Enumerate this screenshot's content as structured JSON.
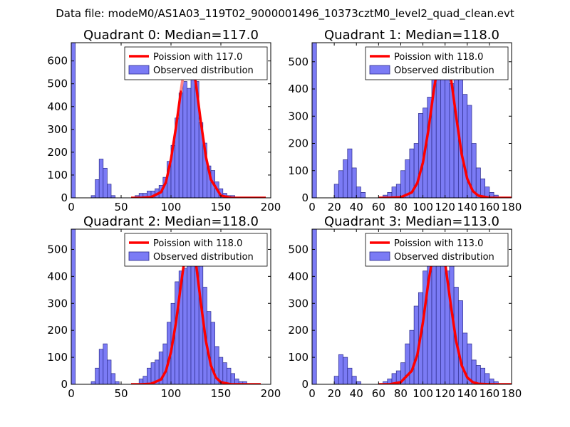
{
  "suptitle": "Data file: modeM0/AS1A03_119T02_9000001496_10373cztM0_level2_quad_clean.evt",
  "colors": {
    "hist_fill": "#7b7bf5",
    "hist_edge": "#2b2b8a",
    "poisson": "#ff0000",
    "poisson_peak": "#ff9a9a",
    "frame": "#000000"
  },
  "legend": {
    "observed_label": "Observed distribution"
  },
  "chart_data": [
    {
      "type": "bar",
      "title": "Quadrant 0: Median=117.0",
      "poisson_label": "Poission with 117.0",
      "median": 117.0,
      "xlim": [
        0,
        200
      ],
      "ylim": [
        0,
        680
      ],
      "xticks": [
        0,
        50,
        100,
        150,
        200
      ],
      "yticks": [
        0,
        100,
        200,
        300,
        400,
        500,
        600
      ],
      "xticklabels": [
        "0",
        "50",
        "100",
        "150",
        "200"
      ],
      "yticklabels": [
        "0",
        "100",
        "200",
        "300",
        "400",
        "500",
        "600"
      ],
      "bins": [
        [
          0,
          4,
          680
        ],
        [
          20,
          4,
          10
        ],
        [
          24,
          4,
          80
        ],
        [
          28,
          4,
          170
        ],
        [
          32,
          4,
          130
        ],
        [
          36,
          4,
          60
        ],
        [
          40,
          4,
          10
        ],
        [
          64,
          4,
          10
        ],
        [
          68,
          4,
          20
        ],
        [
          72,
          4,
          20
        ],
        [
          76,
          4,
          30
        ],
        [
          80,
          4,
          30
        ],
        [
          84,
          4,
          40
        ],
        [
          88,
          4,
          55
        ],
        [
          92,
          4,
          90
        ],
        [
          96,
          4,
          160
        ],
        [
          100,
          4,
          230
        ],
        [
          104,
          4,
          350
        ],
        [
          108,
          4,
          460
        ],
        [
          112,
          4,
          510
        ],
        [
          116,
          4,
          480
        ],
        [
          120,
          4,
          530
        ],
        [
          124,
          4,
          510
        ],
        [
          128,
          4,
          330
        ],
        [
          132,
          4,
          240
        ],
        [
          136,
          4,
          140
        ],
        [
          140,
          4,
          120
        ],
        [
          144,
          4,
          70
        ],
        [
          148,
          4,
          40
        ],
        [
          152,
          4,
          20
        ],
        [
          156,
          4,
          10
        ],
        [
          160,
          4,
          10
        ]
      ],
      "poisson_x": [
        60,
        70,
        80,
        90,
        95,
        100,
        105,
        110,
        114,
        117,
        120,
        125,
        130,
        135,
        140,
        150,
        160,
        170,
        180,
        190,
        195
      ],
      "poisson_y": [
        0,
        0,
        3,
        25,
        70,
        170,
        310,
        470,
        590,
        650,
        630,
        500,
        330,
        180,
        80,
        10,
        0,
        0,
        0,
        0,
        0
      ]
    },
    {
      "type": "bar",
      "title": "Quadrant 1: Median=118.0",
      "poisson_label": "Poission with 118.0",
      "median": 118.0,
      "xlim": [
        0,
        180
      ],
      "ylim": [
        0,
        570
      ],
      "xticks": [
        0,
        20,
        40,
        60,
        80,
        100,
        120,
        140,
        160,
        180
      ],
      "yticks": [
        0,
        100,
        200,
        300,
        400,
        500
      ],
      "xticklabels": [
        "0",
        "20",
        "40",
        "60",
        "80",
        "100",
        "120",
        "140",
        "160",
        "180"
      ],
      "yticklabels": [
        "0",
        "100",
        "200",
        "300",
        "400",
        "500"
      ],
      "bins": [
        [
          0,
          4,
          570
        ],
        [
          20,
          4,
          50
        ],
        [
          24,
          4,
          100
        ],
        [
          28,
          4,
          140
        ],
        [
          32,
          4,
          180
        ],
        [
          36,
          4,
          110
        ],
        [
          40,
          4,
          40
        ],
        [
          44,
          4,
          20
        ],
        [
          64,
          4,
          10
        ],
        [
          68,
          4,
          20
        ],
        [
          72,
          4,
          40
        ],
        [
          76,
          4,
          50
        ],
        [
          80,
          4,
          100
        ],
        [
          84,
          4,
          140
        ],
        [
          88,
          4,
          180
        ],
        [
          92,
          4,
          200
        ],
        [
          96,
          4,
          310
        ],
        [
          100,
          4,
          330
        ],
        [
          104,
          4,
          370
        ],
        [
          108,
          4,
          480
        ],
        [
          112,
          4,
          510
        ],
        [
          116,
          4,
          550
        ],
        [
          120,
          4,
          500
        ],
        [
          124,
          4,
          420
        ],
        [
          128,
          4,
          550
        ],
        [
          132,
          4,
          480
        ],
        [
          136,
          4,
          380
        ],
        [
          140,
          4,
          340
        ],
        [
          144,
          4,
          200
        ],
        [
          148,
          4,
          110
        ],
        [
          152,
          4,
          70
        ],
        [
          156,
          4,
          40
        ],
        [
          160,
          4,
          20
        ],
        [
          164,
          4,
          10
        ]
      ],
      "poisson_x": [
        60,
        70,
        80,
        90,
        95,
        100,
        105,
        110,
        115,
        118,
        121,
        125,
        130,
        135,
        140,
        145,
        150,
        160,
        170,
        180
      ],
      "poisson_y": [
        0,
        0,
        2,
        20,
        55,
        130,
        250,
        400,
        520,
        550,
        530,
        450,
        300,
        160,
        70,
        25,
        8,
        0,
        0,
        0
      ]
    },
    {
      "type": "bar",
      "title": "Quadrant 2: Median=118.0",
      "poisson_label": "Poission with 118.0",
      "median": 118.0,
      "xlim": [
        0,
        200
      ],
      "ylim": [
        0,
        575
      ],
      "xticks": [
        0,
        50,
        100,
        150,
        200
      ],
      "yticks": [
        0,
        100,
        200,
        300,
        400,
        500
      ],
      "xticklabels": [
        "0",
        "50",
        "100",
        "150",
        "200"
      ],
      "yticklabels": [
        "0",
        "100",
        "200",
        "300",
        "400",
        "500"
      ],
      "bins": [
        [
          0,
          4,
          575
        ],
        [
          20,
          4,
          10
        ],
        [
          24,
          4,
          60
        ],
        [
          28,
          4,
          130
        ],
        [
          32,
          4,
          150
        ],
        [
          36,
          4,
          90
        ],
        [
          40,
          4,
          40
        ],
        [
          44,
          4,
          10
        ],
        [
          68,
          4,
          20
        ],
        [
          72,
          4,
          30
        ],
        [
          76,
          4,
          60
        ],
        [
          80,
          4,
          80
        ],
        [
          84,
          4,
          90
        ],
        [
          88,
          4,
          120
        ],
        [
          92,
          4,
          150
        ],
        [
          96,
          4,
          230
        ],
        [
          100,
          4,
          300
        ],
        [
          104,
          4,
          380
        ],
        [
          108,
          4,
          420
        ],
        [
          112,
          4,
          430
        ],
        [
          116,
          4,
          490
        ],
        [
          120,
          4,
          520
        ],
        [
          124,
          4,
          480
        ],
        [
          128,
          4,
          440
        ],
        [
          132,
          4,
          360
        ],
        [
          136,
          4,
          270
        ],
        [
          140,
          4,
          230
        ],
        [
          144,
          4,
          140
        ],
        [
          148,
          4,
          100
        ],
        [
          152,
          4,
          80
        ],
        [
          156,
          4,
          60
        ],
        [
          160,
          4,
          40
        ],
        [
          164,
          4,
          20
        ],
        [
          168,
          4,
          10
        ],
        [
          172,
          4,
          10
        ]
      ],
      "poisson_x": [
        60,
        70,
        80,
        90,
        95,
        100,
        105,
        110,
        115,
        118,
        121,
        125,
        130,
        135,
        140,
        145,
        150,
        160,
        170,
        180,
        190
      ],
      "poisson_y": [
        0,
        0,
        2,
        18,
        50,
        120,
        230,
        370,
        500,
        545,
        525,
        450,
        300,
        160,
        70,
        25,
        8,
        0,
        0,
        0,
        0
      ]
    },
    {
      "type": "bar",
      "title": "Quadrant 3: Median=113.0",
      "poisson_label": "Poission with 113.0",
      "median": 113.0,
      "xlim": [
        0,
        180
      ],
      "ylim": [
        0,
        575
      ],
      "xticks": [
        0,
        20,
        40,
        60,
        80,
        100,
        120,
        140,
        160,
        180
      ],
      "yticks": [
        0,
        100,
        200,
        300,
        400,
        500
      ],
      "xticklabels": [
        "0",
        "20",
        "40",
        "60",
        "80",
        "100",
        "120",
        "140",
        "160",
        "180"
      ],
      "yticklabels": [
        "0",
        "100",
        "200",
        "300",
        "400",
        "500"
      ],
      "bins": [
        [
          0,
          4,
          575
        ],
        [
          20,
          4,
          30
        ],
        [
          24,
          4,
          110
        ],
        [
          28,
          4,
          100
        ],
        [
          32,
          4,
          60
        ],
        [
          36,
          4,
          30
        ],
        [
          40,
          4,
          10
        ],
        [
          64,
          4,
          10
        ],
        [
          68,
          4,
          20
        ],
        [
          72,
          4,
          40
        ],
        [
          76,
          4,
          50
        ],
        [
          80,
          4,
          80
        ],
        [
          84,
          4,
          150
        ],
        [
          88,
          4,
          200
        ],
        [
          92,
          4,
          290
        ],
        [
          96,
          4,
          340
        ],
        [
          100,
          4,
          420
        ],
        [
          104,
          4,
          500
        ],
        [
          108,
          4,
          520
        ],
        [
          112,
          4,
          550
        ],
        [
          116,
          4,
          520
        ],
        [
          120,
          4,
          420
        ],
        [
          124,
          4,
          460
        ],
        [
          128,
          4,
          360
        ],
        [
          132,
          4,
          310
        ],
        [
          136,
          4,
          190
        ],
        [
          140,
          4,
          150
        ],
        [
          144,
          4,
          90
        ],
        [
          148,
          4,
          70
        ],
        [
          152,
          4,
          60
        ],
        [
          156,
          4,
          40
        ],
        [
          160,
          4,
          20
        ],
        [
          164,
          4,
          10
        ]
      ],
      "poisson_x": [
        60,
        70,
        80,
        90,
        95,
        100,
        105,
        110,
        113,
        116,
        120,
        125,
        130,
        135,
        140,
        145,
        150,
        160,
        170,
        180
      ],
      "poisson_y": [
        0,
        0,
        8,
        50,
        110,
        230,
        380,
        500,
        545,
        530,
        450,
        300,
        160,
        70,
        25,
        8,
        2,
        0,
        0,
        0
      ]
    }
  ]
}
